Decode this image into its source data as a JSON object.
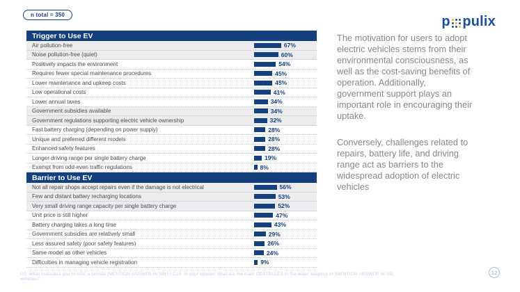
{
  "badge": {
    "label": "n  total = 350"
  },
  "logo": {
    "left": "p",
    "right": "pulix",
    "dots": [
      "yellow",
      "blue",
      "blue",
      "blue",
      "yellow",
      "blue",
      "blue",
      "blue",
      "yellow"
    ]
  },
  "commentary": {
    "p1": "The motivation for users to adopt electric vehicles stems from their environmental consciousness, as well as the cost-saving benefits of operation. Additionally, government support plays an important role in encouraging their uptake.",
    "p2": "Conversely, challenges related to repairs, battery life, and driving range act as barriers to the widespread adoption of electric vehicles"
  },
  "footer": {
    "note": "G9. What motivates you to USE a vehicle (MENTION ANSWER IN S9)? | G10. In your opinion, what are the main OBSTACLES to the wider adoption of (MENTION ANSWER IN S9) vehicles?",
    "page": "12"
  },
  "colors": {
    "navy": "#14417E",
    "bar": "#14417E",
    "row_shade": "#ECECEC",
    "dotted_rule": "#B5C5E3",
    "logo_blue": "#1F4E9C",
    "logo_yellow": "#F2A93B",
    "commentary_text": "#878787",
    "footer_text": "#C7D0EF"
  },
  "chart_data": [
    {
      "type": "bar",
      "orientation": "horizontal",
      "title": "Trigger to Use EV",
      "unit": "%",
      "xlim": [
        0,
        100
      ],
      "grid": false,
      "categories": [
        "Air pollution-free",
        "Noise pollution-free (quiet)",
        "Positively impacts the environment",
        "Requires fewer special maintenance procedures",
        "Lower maintenance and upkeep costs",
        "Low operational costs",
        "Lower annual taxes",
        "Government subsidies available",
        "Government regulations supporting electric vehicle ownership",
        "Fast battery charging (depending on power supply)",
        "Unique and preferred different models",
        "Enhanced safety features",
        "Longer driving range per single battery charge",
        "Exempt from odd-even traffic regulations"
      ],
      "values": [
        67,
        60,
        54,
        45,
        45,
        41,
        34,
        34,
        32,
        28,
        28,
        28,
        19,
        8
      ],
      "shaded_rows": [
        0,
        1,
        7,
        8
      ]
    },
    {
      "type": "bar",
      "orientation": "horizontal",
      "title": "Barrier to Use EV",
      "unit": "%",
      "xlim": [
        0,
        100
      ],
      "grid": false,
      "categories": [
        "Not all repair shops accept repairs even if the damage is not electrical",
        "Few and distant battery recharging locations",
        "Very small driving range capacity per single battery charge",
        "Unit price is still higher",
        "Battery charging takes a long time",
        "Government subsidies are relatively small",
        "Less assured safety (poor safety features)",
        "Same model as other vehicles",
        "Difficulties in managing vehicle registration"
      ],
      "values": [
        56,
        53,
        52,
        47,
        43,
        29,
        26,
        24,
        9
      ],
      "shaded_rows": [
        0,
        1,
        2
      ]
    }
  ]
}
